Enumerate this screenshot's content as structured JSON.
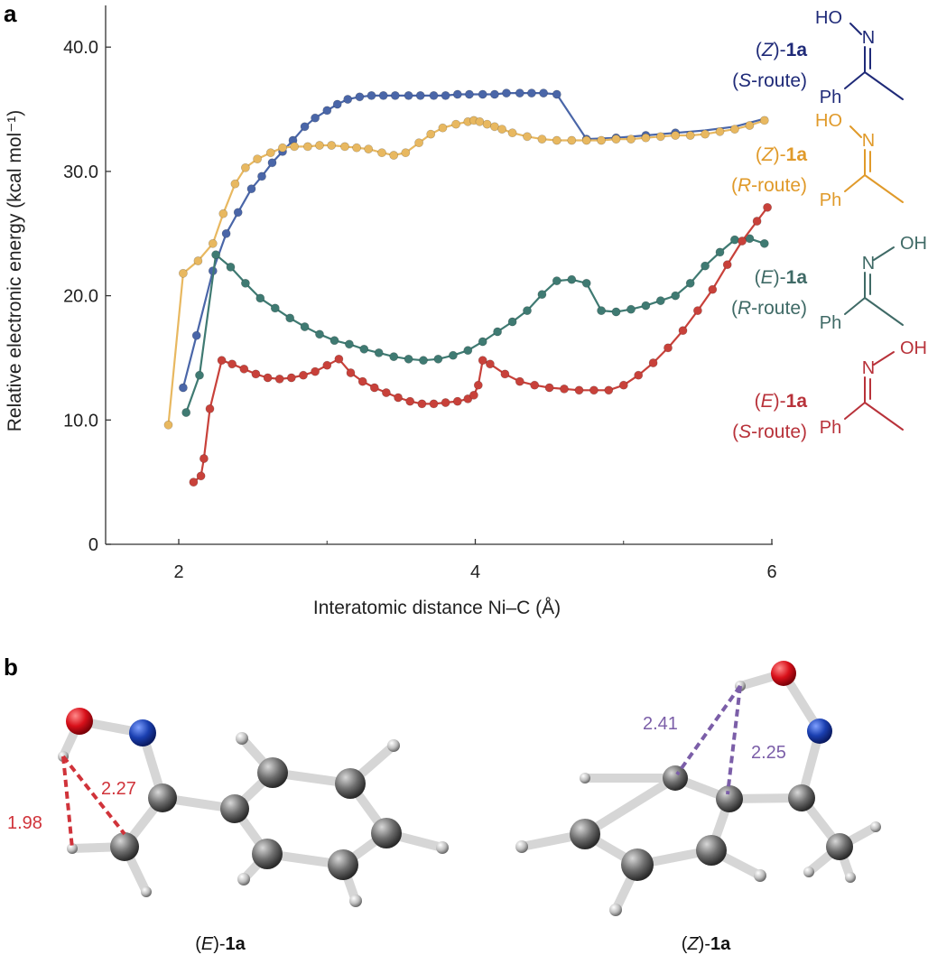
{
  "panel_a_label": "a",
  "panel_b_label": "b",
  "chart_data": {
    "type": "line",
    "xlabel": "Interatomic distance Ni–C (Å)",
    "ylabel": "Relative electronic energy (kcal mol⁻¹)",
    "xlim": [
      1.5,
      6.0
    ],
    "ylim": [
      0,
      43
    ],
    "x_ticks": [
      "2",
      "4",
      "6"
    ],
    "y_ticks": [
      "0",
      "10.0",
      "20.0",
      "30.0",
      "40.0"
    ],
    "grid": false,
    "legend": "right, labels with structures",
    "series": [
      {
        "name": "(Z)-1a (S-route)",
        "color": "#4a66a8",
        "x": [
          2.03,
          2.12,
          2.23,
          2.32,
          2.4,
          2.49,
          2.56,
          2.63,
          2.7,
          2.77,
          2.85,
          2.92,
          3.0,
          3.07,
          3.14,
          3.22,
          3.3,
          3.38,
          3.46,
          3.55,
          3.63,
          3.72,
          3.8,
          3.88,
          3.96,
          4.05,
          4.13,
          4.21,
          4.3,
          4.38,
          4.46,
          4.55,
          4.75,
          4.95,
          5.15,
          5.35,
          5.55,
          5.75,
          5.97
        ],
        "y": [
          12.6,
          16.8,
          22.0,
          25.0,
          26.7,
          28.6,
          29.6,
          30.7,
          31.6,
          32.5,
          33.6,
          34.3,
          34.9,
          35.4,
          35.8,
          36.0,
          36.1,
          36.1,
          36.1,
          36.1,
          36.1,
          36.1,
          36.1,
          36.2,
          36.2,
          36.2,
          36.2,
          36.3,
          36.3,
          36.3,
          36.3,
          36.2,
          32.6,
          32.7,
          32.9,
          33.1,
          33.3,
          33.6,
          34.3
        ],
        "markers": 36
      },
      {
        "name": "(Z)-1a (R-route)",
        "color": "#e8b860",
        "x": [
          1.93,
          2.03,
          2.13,
          2.23,
          2.3,
          2.38,
          2.45,
          2.53,
          2.62,
          2.7,
          2.78,
          2.87,
          2.95,
          3.03,
          3.12,
          3.2,
          3.28,
          3.37,
          3.45,
          3.53,
          3.62,
          3.7,
          3.78,
          3.87,
          3.95,
          3.99,
          4.03,
          4.08,
          4.13,
          4.18,
          4.25,
          4.35,
          4.45,
          4.55,
          4.65,
          4.75,
          4.85,
          4.95,
          5.05,
          5.15,
          5.25,
          5.35,
          5.45,
          5.55,
          5.65,
          5.75,
          5.85,
          5.95
        ],
        "y": [
          9.6,
          21.8,
          22.8,
          24.2,
          26.6,
          29.0,
          30.3,
          31.0,
          31.5,
          31.9,
          32.0,
          32.0,
          32.1,
          32.1,
          32.0,
          31.9,
          31.8,
          31.5,
          31.3,
          31.5,
          32.3,
          33.0,
          33.5,
          33.8,
          34.0,
          34.1,
          34.0,
          33.8,
          33.6,
          33.4,
          33.1,
          32.8,
          32.6,
          32.5,
          32.5,
          32.5,
          32.5,
          32.6,
          32.6,
          32.7,
          32.8,
          32.9,
          32.9,
          33.0,
          33.2,
          33.4,
          33.7,
          34.1
        ]
      },
      {
        "name": "(E)-1a (R-route)",
        "color": "#3f7a72",
        "x": [
          2.05,
          2.14,
          2.25,
          2.35,
          2.45,
          2.55,
          2.65,
          2.75,
          2.85,
          2.95,
          3.05,
          3.15,
          3.25,
          3.35,
          3.45,
          3.55,
          3.65,
          3.75,
          3.85,
          3.95,
          4.05,
          4.15,
          4.25,
          4.35,
          4.45,
          4.55,
          4.65,
          4.75,
          4.85,
          4.95,
          5.05,
          5.15,
          5.25,
          5.35,
          5.45,
          5.55,
          5.65,
          5.75,
          5.85,
          5.95
        ],
        "y": [
          10.6,
          13.6,
          23.3,
          22.3,
          21.0,
          19.8,
          19.0,
          18.2,
          17.5,
          16.9,
          16.4,
          16.1,
          15.7,
          15.4,
          15.1,
          14.9,
          14.8,
          14.9,
          15.2,
          15.6,
          16.3,
          17.1,
          17.9,
          18.8,
          20.1,
          21.2,
          21.3,
          21.0,
          18.8,
          18.7,
          18.9,
          19.2,
          19.6,
          20.0,
          21.0,
          22.4,
          23.5,
          24.5,
          24.6,
          24.2
        ]
      },
      {
        "name": "(E)-1a (S-route)",
        "color": "#c8413a",
        "x": [
          2.1,
          2.15,
          2.17,
          2.21,
          2.29,
          2.36,
          2.44,
          2.52,
          2.6,
          2.68,
          2.76,
          2.84,
          2.92,
          3.0,
          3.08,
          3.16,
          3.24,
          3.32,
          3.4,
          3.48,
          3.56,
          3.64,
          3.72,
          3.8,
          3.88,
          3.95,
          3.99,
          4.02,
          4.05,
          4.1,
          4.2,
          4.3,
          4.4,
          4.5,
          4.6,
          4.7,
          4.8,
          4.9,
          5.0,
          5.1,
          5.2,
          5.3,
          5.4,
          5.5,
          5.6,
          5.7,
          5.8,
          5.9,
          5.97
        ],
        "y": [
          5.0,
          5.5,
          6.9,
          10.9,
          14.8,
          14.5,
          14.1,
          13.7,
          13.4,
          13.3,
          13.4,
          13.6,
          13.9,
          14.4,
          14.9,
          13.8,
          13.1,
          12.6,
          12.2,
          11.8,
          11.5,
          11.3,
          11.3,
          11.4,
          11.5,
          11.7,
          12.0,
          12.8,
          14.8,
          14.5,
          13.7,
          13.1,
          12.8,
          12.6,
          12.5,
          12.4,
          12.4,
          12.4,
          12.8,
          13.6,
          14.6,
          15.8,
          17.2,
          18.8,
          20.5,
          22.5,
          24.4,
          26.0,
          27.1
        ]
      }
    ]
  },
  "legend": [
    {
      "id": "zs",
      "isomer": "Z",
      "compound": "1a",
      "route_letter": "S",
      "route_suffix": "-route",
      "color": "#1f2a78",
      "oh_label": "HO",
      "n_label": "N",
      "ph_label": "Ph"
    },
    {
      "id": "zr",
      "isomer": "Z",
      "compound": "1a",
      "route_letter": "R",
      "route_suffix": "-route",
      "color": "#e09a2a",
      "oh_label": "HO",
      "n_label": "N",
      "ph_label": "Ph"
    },
    {
      "id": "er",
      "isomer": "E",
      "compound": "1a",
      "route_letter": "R",
      "route_suffix": "-route",
      "color": "#3f6a66",
      "oh_label": "OH",
      "n_label": "N",
      "ph_label": "Ph"
    },
    {
      "id": "es",
      "isomer": "E",
      "compound": "1a",
      "route_letter": "S",
      "route_suffix": "-route",
      "color": "#b8323a",
      "oh_label": "OH",
      "n_label": "N",
      "ph_label": "Ph"
    }
  ],
  "panel_b": {
    "left": {
      "caption_isomer": "E",
      "caption_compound": "1a",
      "distances": [
        {
          "label": "1.98",
          "color": "#d0333a"
        },
        {
          "label": "2.27",
          "color": "#d0333a"
        }
      ]
    },
    "right": {
      "caption_isomer": "Z",
      "caption_compound": "1a",
      "distances": [
        {
          "label": "2.41",
          "color": "#7b5ea8"
        },
        {
          "label": "2.25",
          "color": "#7b5ea8"
        }
      ]
    }
  }
}
